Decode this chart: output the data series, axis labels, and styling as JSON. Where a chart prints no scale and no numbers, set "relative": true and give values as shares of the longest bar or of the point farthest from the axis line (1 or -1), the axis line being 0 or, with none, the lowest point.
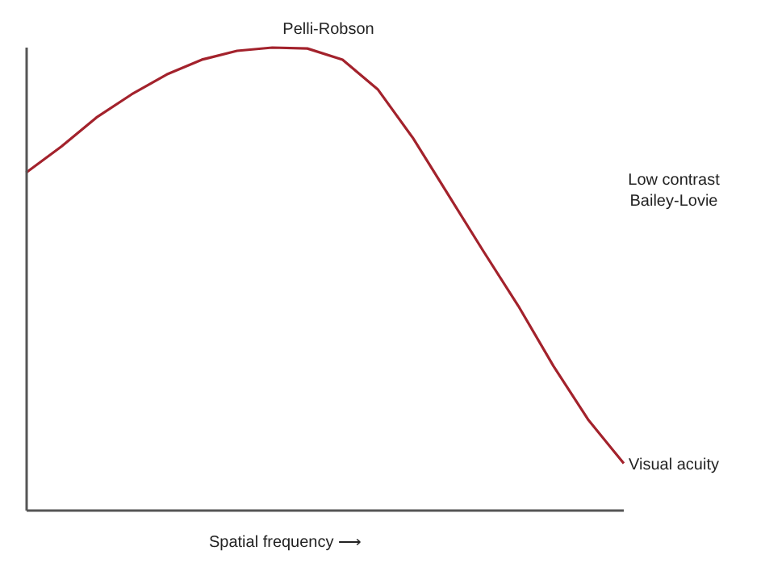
{
  "chart_data": {
    "type": "line",
    "relative": true,
    "xlabel": "Spatial frequency ⟶",
    "categories": [
      null,
      null,
      null,
      null,
      null,
      null,
      null,
      null,
      null,
      null,
      null,
      null,
      null,
      null,
      null,
      null,
      null,
      null
    ],
    "series": [
      {
        "color": "#a3222c",
        "values": [
          0.73,
          0.786,
          0.849,
          0.899,
          0.942,
          0.974,
          0.993,
          1.0,
          0.998,
          0.974,
          0.91,
          0.805,
          0.683,
          0.561,
          0.442,
          0.312,
          0.195,
          0.102
        ]
      }
    ],
    "annotations": [
      "Pelli-Robson",
      "Low contrast\nBailey-Lovie",
      "Visual acuity"
    ],
    "marker": "none",
    "line_style": "solid"
  }
}
